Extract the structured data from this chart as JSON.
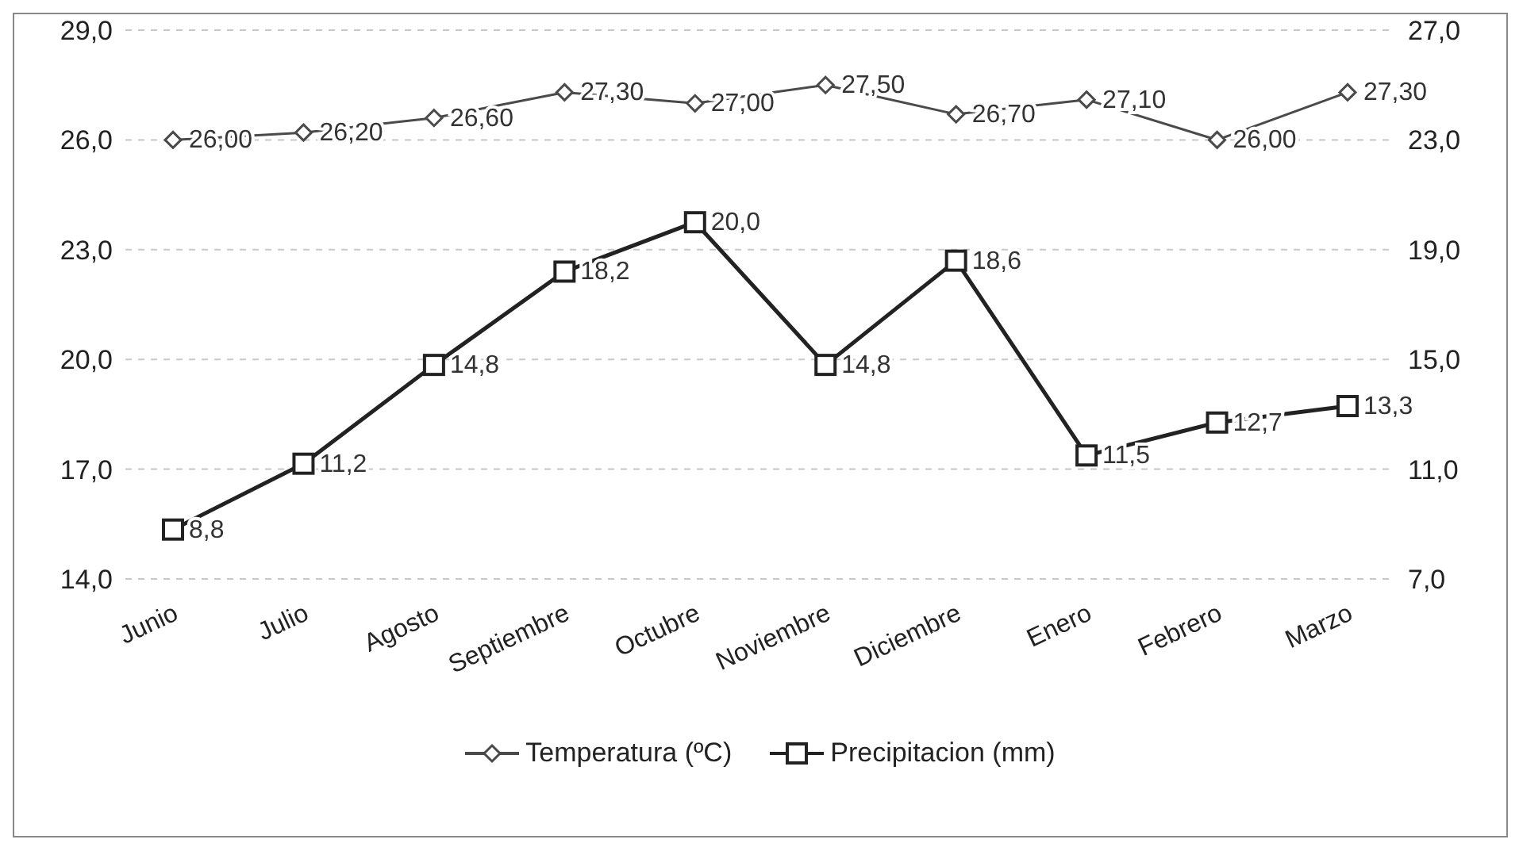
{
  "chart_data": {
    "type": "line",
    "categories": [
      "Junio",
      "Julio",
      "Agosto",
      "Septiembre",
      "Octubre",
      "Noviembre",
      "Diciembre",
      "Enero",
      "Febrero",
      "Marzo"
    ],
    "series": [
      {
        "name": "Temperatura (ºC)",
        "color": "#4a4a4a",
        "marker": "diamond",
        "values": [
          26.0,
          26.2,
          26.6,
          27.3,
          27.0,
          27.5,
          26.7,
          27.1,
          26.0,
          27.3
        ],
        "value_labels": [
          "26,00",
          "26,20",
          "26,60",
          "27,30",
          "27,00",
          "27,50",
          "26,70",
          "27,10",
          "26,00",
          "27,30"
        ]
      },
      {
        "name": "Precipitacion (mm)",
        "color": "#222222",
        "marker": "square",
        "axis": "y2",
        "values": [
          8.8,
          11.2,
          14.8,
          18.2,
          20.0,
          14.8,
          18.6,
          11.5,
          12.7,
          13.3
        ],
        "value_labels": [
          "8,8",
          "11,2",
          "14,8",
          "18,2",
          "20,0",
          "14,8",
          "18,6",
          "11,5",
          "12,7",
          "13,3"
        ]
      }
    ],
    "ylim": [
      14,
      29
    ],
    "yticks": [
      {
        "value": 14,
        "label": "14,0"
      },
      {
        "value": 17,
        "label": "17,0"
      },
      {
        "value": 20,
        "label": "20,0"
      },
      {
        "value": 23,
        "label": "23,0"
      },
      {
        "value": 26,
        "label": "26,0"
      },
      {
        "value": 29,
        "label": "29,0"
      }
    ],
    "y2lim": [
      7,
      27
    ],
    "y2ticks": [
      {
        "value": 7,
        "label": "7,0"
      },
      {
        "value": 11,
        "label": "11,0"
      },
      {
        "value": 15,
        "label": "15,0"
      },
      {
        "value": 19,
        "label": "19,0"
      },
      {
        "value": 23,
        "label": "23,0"
      },
      {
        "value": 27,
        "label": "27,0"
      }
    ],
    "grid": "y",
    "legend": "bottom",
    "line_style": "solid"
  }
}
